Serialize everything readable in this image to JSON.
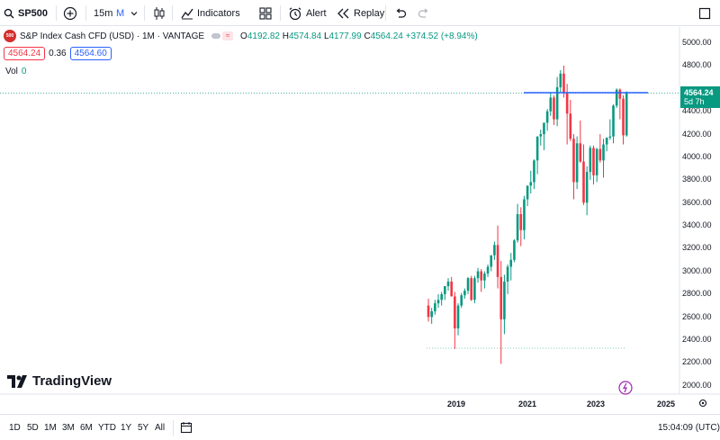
{
  "toolbar": {
    "symbol": "SP500",
    "interval": "15m",
    "interval_extra": "M",
    "indicators_label": "Indicators",
    "alert_label": "Alert",
    "replay_label": "Replay"
  },
  "legend": {
    "logo_text": "500",
    "title": "S&P Index Cash CFD (USD) · 1M · VANTAGE",
    "open_label": "O",
    "open": "4192.82",
    "high_label": "H",
    "high": "4574.84",
    "low_label": "L",
    "low": "4177.99",
    "close_label": "C",
    "close": "4564.24",
    "change": "+374.52 (+8.94%)"
  },
  "quote": {
    "bid": "4564.24",
    "spread": "0.36",
    "ask": "4564.60"
  },
  "volume": {
    "label": "Vol",
    "value": "0"
  },
  "price_axis": {
    "labels": [
      "5000.00",
      "4800.00",
      "4400.00",
      "4200.00",
      "4000.00",
      "3800.00",
      "3600.00",
      "3400.00",
      "3200.00",
      "3000.00",
      "2800.00",
      "2600.00",
      "2400.00",
      "2200.00",
      "2000.00"
    ],
    "last_price": "4564.24",
    "countdown": "5d 7h"
  },
  "time_axis": {
    "labels": [
      "2019",
      "2021",
      "2023",
      "2025"
    ]
  },
  "brand": "TradingView",
  "bottom": {
    "ranges": [
      "1D",
      "5D",
      "1M",
      "3M",
      "6M",
      "YTD",
      "1Y",
      "5Y",
      "All"
    ],
    "clock": "15:04:09 (UTC)"
  },
  "colors": {
    "up": "#089981",
    "down": "#f23645",
    "hline": "#2962ff",
    "brand_dark": "#131722"
  },
  "chart_data": {
    "type": "candlestick",
    "ylim": [
      2000,
      5000
    ],
    "horizontal_line": 4545,
    "last_price": 4564.24,
    "x_ticks": [
      "2019",
      "2021",
      "2023",
      "2025"
    ],
    "candles": [
      {
        "o": 2700,
        "h": 2760,
        "l": 2560,
        "c": 2600
      },
      {
        "o": 2600,
        "h": 2680,
        "l": 2540,
        "c": 2650
      },
      {
        "o": 2650,
        "h": 2750,
        "l": 2620,
        "c": 2720
      },
      {
        "o": 2720,
        "h": 2800,
        "l": 2680,
        "c": 2750
      },
      {
        "o": 2750,
        "h": 2820,
        "l": 2700,
        "c": 2800
      },
      {
        "o": 2800,
        "h": 2860,
        "l": 2750,
        "c": 2870
      },
      {
        "o": 2870,
        "h": 2940,
        "l": 2830,
        "c": 2910
      },
      {
        "o": 2910,
        "h": 2950,
        "l": 2780,
        "c": 2780
      },
      {
        "o": 2780,
        "h": 2820,
        "l": 2320,
        "c": 2500
      },
      {
        "o": 2500,
        "h": 2720,
        "l": 2440,
        "c": 2700
      },
      {
        "o": 2700,
        "h": 2810,
        "l": 2680,
        "c": 2790
      },
      {
        "o": 2790,
        "h": 2850,
        "l": 2760,
        "c": 2830
      },
      {
        "o": 2830,
        "h": 2950,
        "l": 2800,
        "c": 2940
      },
      {
        "o": 2940,
        "h": 2960,
        "l": 2740,
        "c": 2750
      },
      {
        "o": 2750,
        "h": 2960,
        "l": 2720,
        "c": 2940
      },
      {
        "o": 2940,
        "h": 3030,
        "l": 2900,
        "c": 3000
      },
      {
        "o": 3000,
        "h": 3020,
        "l": 2820,
        "c": 2920
      },
      {
        "o": 2920,
        "h": 3000,
        "l": 2850,
        "c": 2980
      },
      {
        "o": 2980,
        "h": 3060,
        "l": 2950,
        "c": 3040
      },
      {
        "o": 3040,
        "h": 3140,
        "l": 3000,
        "c": 3140
      },
      {
        "o": 3140,
        "h": 3260,
        "l": 3100,
        "c": 3230
      },
      {
        "o": 3230,
        "h": 3400,
        "l": 2850,
        "c": 2950
      },
      {
        "o": 2950,
        "h": 3090,
        "l": 2190,
        "c": 2580
      },
      {
        "o": 2580,
        "h": 2970,
        "l": 2450,
        "c": 2910
      },
      {
        "o": 2910,
        "h": 3060,
        "l": 2800,
        "c": 3040
      },
      {
        "o": 3040,
        "h": 3160,
        "l": 2920,
        "c": 3100
      },
      {
        "o": 3100,
        "h": 3280,
        "l": 3080,
        "c": 3270
      },
      {
        "o": 3270,
        "h": 3590,
        "l": 3250,
        "c": 3500
      },
      {
        "o": 3500,
        "h": 3560,
        "l": 3220,
        "c": 3360
      },
      {
        "o": 3360,
        "h": 3660,
        "l": 3280,
        "c": 3630
      },
      {
        "o": 3630,
        "h": 3740,
        "l": 3570,
        "c": 3750
      },
      {
        "o": 3750,
        "h": 3880,
        "l": 3680,
        "c": 3780
      },
      {
        "o": 3780,
        "h": 3980,
        "l": 3720,
        "c": 3970
      },
      {
        "o": 3970,
        "h": 4180,
        "l": 3850,
        "c": 4180
      },
      {
        "o": 4180,
        "h": 4240,
        "l": 4100,
        "c": 4200
      },
      {
        "o": 4200,
        "h": 4300,
        "l": 4060,
        "c": 4300
      },
      {
        "o": 4300,
        "h": 4420,
        "l": 4230,
        "c": 4400
      },
      {
        "o": 4400,
        "h": 4560,
        "l": 4360,
        "c": 4520
      },
      {
        "o": 4520,
        "h": 4540,
        "l": 4280,
        "c": 4330
      },
      {
        "o": 4330,
        "h": 4700,
        "l": 4270,
        "c": 4610
      },
      {
        "o": 4610,
        "h": 4760,
        "l": 4560,
        "c": 4730
      },
      {
        "o": 4730,
        "h": 4800,
        "l": 4520,
        "c": 4560
      },
      {
        "o": 4560,
        "h": 4640,
        "l": 4110,
        "c": 4380
      },
      {
        "o": 4380,
        "h": 4500,
        "l": 4140,
        "c": 4160
      },
      {
        "o": 4160,
        "h": 4200,
        "l": 3630,
        "c": 3780
      },
      {
        "o": 3780,
        "h": 4180,
        "l": 3720,
        "c": 4120
      },
      {
        "o": 4120,
        "h": 4320,
        "l": 3950,
        "c": 3960
      },
      {
        "o": 3960,
        "h": 4110,
        "l": 3580,
        "c": 3600
      },
      {
        "o": 3600,
        "h": 3920,
        "l": 3490,
        "c": 3870
      },
      {
        "o": 3870,
        "h": 4100,
        "l": 3800,
        "c": 4080
      },
      {
        "o": 4080,
        "h": 4100,
        "l": 3760,
        "c": 3840
      },
      {
        "o": 3840,
        "h": 4080,
        "l": 3780,
        "c": 4070
      },
      {
        "o": 4070,
        "h": 4200,
        "l": 3950,
        "c": 3970
      },
      {
        "o": 3970,
        "h": 4160,
        "l": 3820,
        "c": 4110
      },
      {
        "o": 4110,
        "h": 4170,
        "l": 4050,
        "c": 4170
      },
      {
        "o": 4170,
        "h": 4330,
        "l": 4150,
        "c": 4180
      },
      {
        "o": 4180,
        "h": 4460,
        "l": 4120,
        "c": 4450
      },
      {
        "o": 4450,
        "h": 4600,
        "l": 4430,
        "c": 4590
      },
      {
        "o": 4590,
        "h": 4600,
        "l": 4330,
        "c": 4510
      },
      {
        "o": 4510,
        "h": 4540,
        "l": 4110,
        "c": 4190
      },
      {
        "o": 4190,
        "h": 4575,
        "l": 4178,
        "c": 4564
      }
    ]
  }
}
